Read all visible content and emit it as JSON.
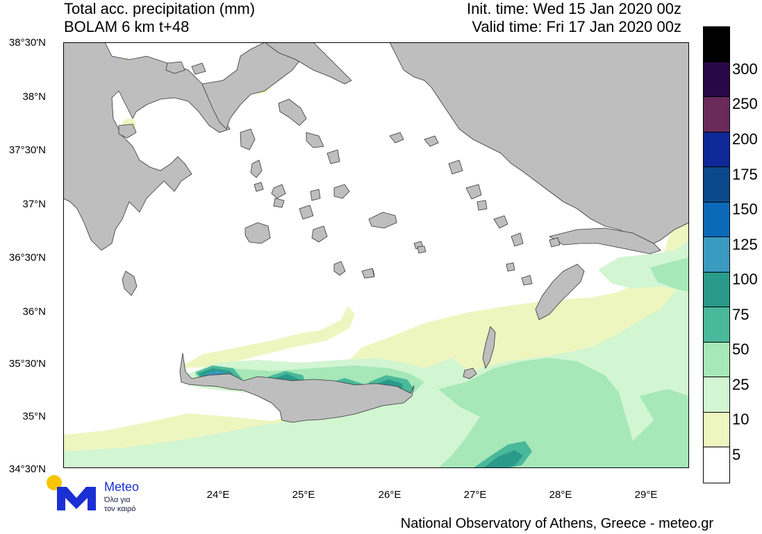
{
  "header": {
    "title_line1": "Total acc. precipitation (mm)",
    "title_line2": "BOLAM 6 km t+48",
    "init_time": "Init. time: Wed 15 Jan 2020 00z",
    "valid_time": "Valid time: Fri 17 Jan 2020 00z"
  },
  "axes": {
    "y_labels": [
      "38°30'N",
      "38°N",
      "37°30'N",
      "37°N",
      "36°30'N",
      "36°N",
      "35°30'N",
      "35°N",
      "34°30'N"
    ],
    "x_labels": [
      "24°E",
      "25°E",
      "26°E",
      "27°E",
      "28°E",
      "29°E"
    ]
  },
  "colorbar": {
    "labels": [
      "300",
      "250",
      "200",
      "175",
      "150",
      "125",
      "100",
      "75",
      "50",
      "25",
      "10",
      "5"
    ],
    "colors": [
      "#000000",
      "#2a0848",
      "#6a2a5a",
      "#0f2898",
      "#0a4a8a",
      "#0a6ab8",
      "#3a9ac0",
      "#2a9a8a",
      "#4ab89a",
      "#a6e8b8",
      "#d2f5d2",
      "#eef6c0",
      "#ffffff"
    ]
  },
  "map_colors": {
    "land": "#bebebe",
    "sea": "#ffffff",
    "p5": "#eef6c0",
    "p10": "#d2f5d2",
    "p25": "#a6e8b8",
    "p50": "#4ab89a",
    "p75": "#2a9a8a",
    "p100": "#3a9ac0",
    "p125": "#0a6ab8"
  },
  "logo": {
    "brand": "Meteo",
    "tagline_line1": "Όλα για",
    "tagline_line2": "τον καιρό",
    "accent_color": "#1a2fd4",
    "sun_color": "#f7c600"
  },
  "footer": {
    "credit": "National Observatory of Athens, Greece - meteo.gr"
  }
}
